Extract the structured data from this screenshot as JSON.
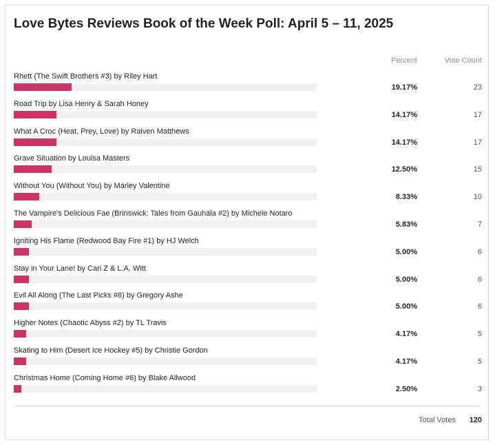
{
  "chart_data": {
    "type": "bar",
    "title": "Love Bytes Reviews Book of the Week Poll: April 5 – 11, 2025",
    "column_headers": {
      "percent": "Percent",
      "votes": "Vote Count"
    },
    "series_color": "#cc3366",
    "track_color": "#f0f0f1",
    "items": [
      {
        "label": "Rhett (The Swift Brothers #3) by Riley Hart",
        "percent": "19.17%",
        "value": 19.17,
        "votes": "23"
      },
      {
        "label": "Road Trip by Lisa Henry & Sarah Honey",
        "percent": "14.17%",
        "value": 14.17,
        "votes": "17"
      },
      {
        "label": "What A Croc (Heat, Prey, Love) by Raiven Matthews",
        "percent": "14.17%",
        "value": 14.17,
        "votes": "17"
      },
      {
        "label": "Grave Situation by Louisa Masters",
        "percent": "12.50%",
        "value": 12.5,
        "votes": "15"
      },
      {
        "label": "Without You (Without You) by Marley Valentine",
        "percent": "8.33%",
        "value": 8.33,
        "votes": "10"
      },
      {
        "label": "The Vampire's Delicious Fae (Brinswick: Tales from Gauhala #2) by Michele Notaro",
        "percent": "5.83%",
        "value": 5.83,
        "votes": "7"
      },
      {
        "label": "Igniting His Flame (Redwood Bay Fire #1) by HJ Welch",
        "percent": "5.00%",
        "value": 5.0,
        "votes": "6"
      },
      {
        "label": "Stay in Your Lane! by Cari Z & L.A. Witt",
        "percent": "5.00%",
        "value": 5.0,
        "votes": "6"
      },
      {
        "label": "Evil All Along (The Last Picks #8) by Gregory Ashe",
        "percent": "5.00%",
        "value": 5.0,
        "votes": "6"
      },
      {
        "label": "Higher Notes (Chaotic Abyss #2) by TL Travis",
        "percent": "4.17%",
        "value": 4.17,
        "votes": "5"
      },
      {
        "label": "Skating to Him (Desert Ice Hockey #5) by Christie Gordon",
        "percent": "4.17%",
        "value": 4.17,
        "votes": "5"
      },
      {
        "label": "Christmas Home (Coming Home #6) by Blake Allwood",
        "percent": "2.50%",
        "value": 2.5,
        "votes": "3"
      }
    ],
    "total_label": "Total Votes",
    "total_value": "120"
  }
}
